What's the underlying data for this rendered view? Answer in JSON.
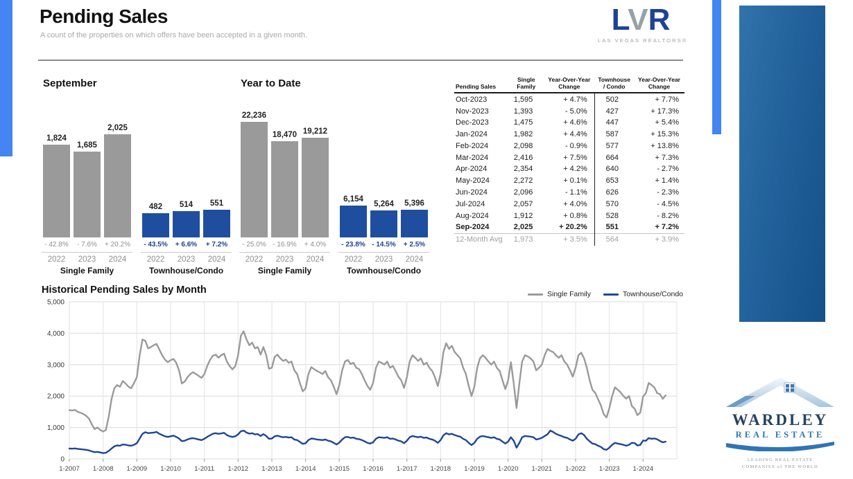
{
  "page": {
    "title": "Pending Sales",
    "subtitle": "A count of the properties on which offers have been accepted in a given month."
  },
  "lvr": {
    "letters": [
      "L",
      "V",
      "R"
    ],
    "tagline": "LAS VEGAS REALTORS®"
  },
  "colors": {
    "single_family": "#9a9a9a",
    "townhouse_condo_bar": "#1f4e9f",
    "townhouse_condo_line": "#1e4696",
    "accent_stripe": "#4484f3",
    "brand_panel_left": "#3173ab",
    "brand_panel_right": "#145189"
  },
  "chart_data": [
    {
      "type": "bar",
      "title": "September",
      "groups": [
        {
          "name": "Single Family",
          "kind": "sf",
          "color": "#9a9a9a",
          "categories": [
            "2022",
            "2023",
            "2024"
          ],
          "values": [
            1824,
            1685,
            2025
          ],
          "value_labels": [
            "1,824",
            "1,685",
            "2,025"
          ],
          "changes": [
            "- 42.8%",
            "- 7.6%",
            "+ 20.2%"
          ]
        },
        {
          "name": "Townhouse/Condo",
          "kind": "tc",
          "color": "#1f4e9f",
          "categories": [
            "2022",
            "2023",
            "2024"
          ],
          "values": [
            482,
            514,
            551
          ],
          "value_labels": [
            "482",
            "514",
            "551"
          ],
          "changes": [
            "- 43.5%",
            "+ 6.6%",
            "+ 7.2%"
          ]
        }
      ]
    },
    {
      "type": "bar",
      "title": "Year to Date",
      "groups": [
        {
          "name": "Single Family",
          "kind": "sf",
          "color": "#9a9a9a",
          "categories": [
            "2022",
            "2023",
            "2024"
          ],
          "values": [
            22236,
            18470,
            19212
          ],
          "value_labels": [
            "22,236",
            "18,470",
            "19,212"
          ],
          "changes": [
            "- 25.0%",
            "- 16.9%",
            "+ 4.0%"
          ]
        },
        {
          "name": "Townhouse/Condo",
          "kind": "tc",
          "color": "#1f4e9f",
          "categories": [
            "2022",
            "2023",
            "2024"
          ],
          "values": [
            6154,
            5264,
            5396
          ],
          "value_labels": [
            "6,154",
            "5,264",
            "5,396"
          ],
          "changes": [
            "- 23.8%",
            "- 14.5%",
            "+ 2.5%"
          ]
        }
      ]
    },
    {
      "type": "line",
      "title": "Historical Pending Sales by Month",
      "interval": "monthly",
      "x_start": "1-2007",
      "x_end": "9-2024",
      "ylim": [
        0,
        5000
      ],
      "y_ticks": [
        "0",
        "1,000",
        "2,000",
        "3,000",
        "4,000",
        "5,000"
      ],
      "x_ticks": [
        "1-2007",
        "1-2008",
        "1-2009",
        "1-2010",
        "1-2011",
        "1-2012",
        "1-2013",
        "1-2014",
        "1-2015",
        "1-2016",
        "1-2017",
        "1-2018",
        "1-2019",
        "1-2020",
        "1-2021",
        "1-2022",
        "1-2023",
        "1-2024"
      ],
      "grid": true,
      "legend_position": "top-right",
      "series": [
        {
          "name": "Single Family",
          "color": "#9a9a9a",
          "values": [
            1550,
            1540,
            1560,
            1500,
            1470,
            1430,
            1370,
            1280,
            1100,
            950,
            1000,
            920,
            870,
            920,
            1350,
            1900,
            2250,
            2350,
            2300,
            2480,
            2400,
            2300,
            2250,
            2420,
            2600,
            3300,
            3800,
            3760,
            3520,
            3560,
            3620,
            3660,
            3480,
            3300,
            3160,
            3080,
            3140,
            3180,
            3060,
            2820,
            2400,
            2460,
            2600,
            2700,
            2760,
            2700,
            2640,
            2580,
            2700,
            2950,
            3150,
            3280,
            3320,
            3220,
            3300,
            3350,
            3100,
            2950,
            2850,
            2950,
            3300,
            3920,
            4060,
            3800,
            3620,
            3700,
            3520,
            3560,
            3320,
            3560,
            3300,
            2870,
            2900,
            3250,
            3320,
            3200,
            3120,
            3160,
            3060,
            3100,
            2820,
            2700,
            2400,
            2150,
            2250,
            2700,
            2920,
            2860,
            2800,
            2760,
            2700,
            2800,
            2600,
            2500,
            2300,
            2060,
            2350,
            2820,
            3100,
            3150,
            3020,
            3060,
            2900,
            2860,
            2700,
            2500,
            2320,
            2200,
            2420,
            2900,
            3100,
            3060,
            3000,
            3100,
            2900,
            2960,
            2800,
            2620,
            2500,
            2260,
            2600,
            3100,
            3300,
            3220,
            3120,
            3200,
            3000,
            3060,
            2900,
            2800,
            2600,
            2320,
            2700,
            3400,
            3680,
            3500,
            3600,
            3400,
            3300,
            3200,
            2900,
            2700,
            2320,
            2000,
            2300,
            2900,
            3200,
            3300,
            3220,
            3100,
            3000,
            3100,
            2900,
            2800,
            2500,
            2220,
            2500,
            3080,
            2400,
            1620,
            2400,
            3100,
            3300,
            3260,
            3200,
            3100,
            2820,
            2900,
            3000,
            3300,
            3500,
            3440,
            3400,
            3300,
            3220,
            3300,
            3100,
            3000,
            2820,
            2620,
            2900,
            3300,
            3380,
            3200,
            2900,
            2500,
            2200,
            2100,
            1900,
            1700,
            1420,
            1320,
            1620,
            2000,
            2280,
            2200,
            2120,
            2000,
            1920,
            2000,
            1685,
            1595,
            1393,
            1475,
            1982,
            2098,
            2416,
            2354,
            2272,
            2096,
            2057,
            1912,
            2025
          ]
        },
        {
          "name": "Townhouse/Condo",
          "color": "#1e4696",
          "values": [
            330,
            325,
            335,
            320,
            310,
            300,
            290,
            270,
            240,
            215,
            225,
            205,
            185,
            195,
            255,
            330,
            400,
            430,
            420,
            460,
            450,
            430,
            420,
            450,
            500,
            650,
            800,
            850,
            820,
            830,
            840,
            860,
            800,
            760,
            720,
            700,
            720,
            740,
            700,
            650,
            565,
            580,
            620,
            650,
            660,
            640,
            620,
            600,
            640,
            700,
            750,
            800,
            820,
            800,
            810,
            830,
            760,
            720,
            700,
            720,
            780,
            880,
            900,
            840,
            805,
            820,
            780,
            790,
            730,
            790,
            730,
            640,
            650,
            720,
            740,
            710,
            690,
            700,
            680,
            690,
            620,
            600,
            540,
            480,
            500,
            600,
            650,
            640,
            620,
            610,
            600,
            620,
            580,
            560,
            510,
            460,
            520,
            620,
            690,
            700,
            670,
            680,
            640,
            630,
            600,
            560,
            510,
            490,
            530,
            640,
            690,
            680,
            670,
            690,
            640,
            650,
            620,
            580,
            560,
            500,
            580,
            690,
            730,
            710,
            690,
            710,
            670,
            680,
            640,
            620,
            580,
            510,
            600,
            750,
            820,
            780,
            800,
            760,
            730,
            710,
            640,
            600,
            510,
            440,
            510,
            640,
            710,
            730,
            710,
            690,
            670,
            690,
            640,
            620,
            550,
            490,
            550,
            690,
            580,
            360,
            510,
            690,
            730,
            720,
            710,
            690,
            620,
            640,
            670,
            730,
            780,
            900,
            860,
            800,
            760,
            730,
            690,
            670,
            620,
            580,
            640,
            780,
            820,
            760,
            640,
            560,
            490,
            470,
            420,
            380,
            310,
            290,
            360,
            450,
            510,
            490,
            470,
            450,
            420,
            450,
            514,
            502,
            427,
            447,
            587,
            577,
            664,
            640,
            653,
            626,
            570,
            528,
            551
          ]
        }
      ]
    }
  ],
  "table": {
    "headers": [
      "Pending Sales",
      "Single\nFamily",
      "Year-Over-Year\nChange",
      "Townhouse\n/ Condo",
      "Year-Over-Year\nChange"
    ],
    "rows": [
      {
        "month": "Oct-2023",
        "sf": "1,595",
        "sf_chg": "+ 4.7%",
        "tc": "502",
        "tc_chg": "+ 7.7%"
      },
      {
        "month": "Nov-2023",
        "sf": "1,393",
        "sf_chg": "- 5.0%",
        "tc": "427",
        "tc_chg": "+ 17.3%"
      },
      {
        "month": "Dec-2023",
        "sf": "1,475",
        "sf_chg": "+ 4.6%",
        "tc": "447",
        "tc_chg": "+ 5.4%"
      },
      {
        "month": "Jan-2024",
        "sf": "1,982",
        "sf_chg": "+ 4.4%",
        "tc": "587",
        "tc_chg": "+ 15.3%"
      },
      {
        "month": "Feb-2024",
        "sf": "2,098",
        "sf_chg": "- 0.9%",
        "tc": "577",
        "tc_chg": "+ 13.8%"
      },
      {
        "month": "Mar-2024",
        "sf": "2,416",
        "sf_chg": "+ 7.5%",
        "tc": "664",
        "tc_chg": "+ 7.3%"
      },
      {
        "month": "Apr-2024",
        "sf": "2,354",
        "sf_chg": "+ 4.2%",
        "tc": "640",
        "tc_chg": "- 2.7%"
      },
      {
        "month": "May-2024",
        "sf": "2,272",
        "sf_chg": "+ 0.1%",
        "tc": "653",
        "tc_chg": "+ 1.4%"
      },
      {
        "month": "Jun-2024",
        "sf": "2,096",
        "sf_chg": "- 1.1%",
        "tc": "626",
        "tc_chg": "- 2.3%"
      },
      {
        "month": "Jul-2024",
        "sf": "2,057",
        "sf_chg": "+ 4.0%",
        "tc": "570",
        "tc_chg": "- 4.5%"
      },
      {
        "month": "Aug-2024",
        "sf": "1,912",
        "sf_chg": "+ 0.8%",
        "tc": "528",
        "tc_chg": "- 8.2%"
      },
      {
        "month": "Sep-2024",
        "sf": "2,025",
        "sf_chg": "+ 20.2%",
        "tc": "551",
        "tc_chg": "+ 7.2%",
        "bold": true
      }
    ],
    "avg_row": {
      "month": "12-Month Avg",
      "sf": "1,973",
      "sf_chg": "+ 3.5%",
      "tc": "564",
      "tc_chg": "+ 3.9%"
    }
  },
  "wardley": {
    "name": "WARDLEY",
    "line2": "REAL ESTATE",
    "tagline1": "LEADING REAL ESTATE",
    "tagline2": "COMPANIES of THE WORLD"
  }
}
